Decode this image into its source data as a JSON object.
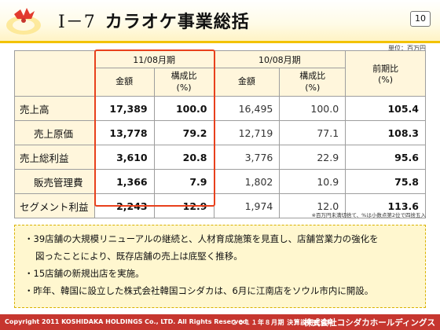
{
  "header": {
    "section_number": "Ⅰ－7",
    "title": "カラオケ事業総括",
    "page_number": "10"
  },
  "unit_label": "単位：百万円",
  "table": {
    "period_current": "11/08月期",
    "period_previous": "10/08月期",
    "yoy_header": "前期比",
    "yoy_unit": "(%)",
    "col_amount": "金額",
    "col_ratio": "構成比",
    "col_ratio_unit": "(%)",
    "rows": [
      {
        "label": "売上高",
        "cur_amount": "17,389",
        "cur_ratio": "100.0",
        "prev_amount": "16,495",
        "prev_ratio": "100.0",
        "yoy": "105.4"
      },
      {
        "label": "売上原価",
        "cur_amount": "13,778",
        "cur_ratio": "79.2",
        "prev_amount": "12,719",
        "prev_ratio": "77.1",
        "yoy": "108.3"
      },
      {
        "label": "売上総利益",
        "cur_amount": "3,610",
        "cur_ratio": "20.8",
        "prev_amount": "3,776",
        "prev_ratio": "22.9",
        "yoy": "95.6"
      },
      {
        "label": "販売管理費",
        "cur_amount": "1,366",
        "cur_ratio": "7.9",
        "prev_amount": "1,802",
        "prev_ratio": "10.9",
        "yoy": "75.8"
      },
      {
        "label": "セグメント利益",
        "cur_amount": "2,243",
        "cur_ratio": "12.9",
        "prev_amount": "1,974",
        "prev_ratio": "12.0",
        "yoy": "113.6"
      }
    ]
  },
  "note": "※百万円未満切捨て、%は小数点第2位で四捨五入",
  "bullets": {
    "b1_line1": "・39店舗の大規模リニューアルの継続と、人材育成施策を見直し、店舗営業力の強化を",
    "b1_line2": "図ったことにより、既存店舗の売上は底堅く推移。",
    "b2": "・15店舗の新規出店を実施。",
    "b3": "・昨年、韓国に設立した株式会社韓国コシダカは、6月に江南店をソウル市内に開設。"
  },
  "footer": {
    "copyright": "Copyright 2011 KOSHIDAKA HOLDINGS Co., LTD. All Rights Reserved",
    "doc": "２０１１年８月期 決算説明会資料",
    "company": "株式会社コシダカホールディングス"
  },
  "colors": {
    "highlight_border": "#e8401c",
    "footer_bg": "#c6362f",
    "header_accent": "#f2c200",
    "table_header_bg": "#fff6dc"
  }
}
